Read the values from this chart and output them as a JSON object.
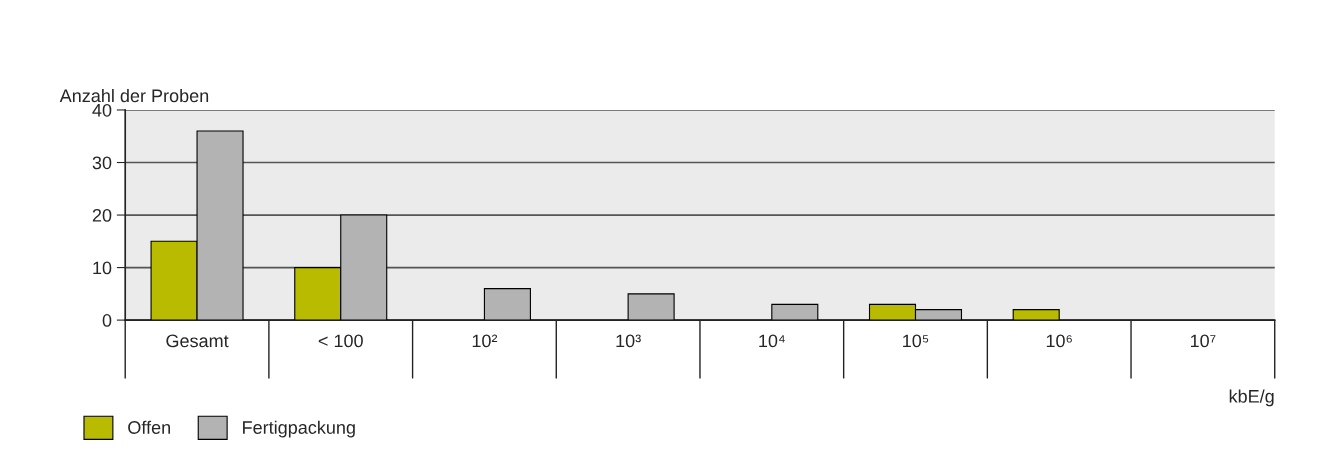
{
  "chart_data": {
    "type": "bar",
    "ylabel": "Anzahl der Proben",
    "xlabel": "kbE/g",
    "categories": [
      "Gesamt",
      "< 100",
      "10²",
      "10³",
      "10⁴",
      "10⁵",
      "10⁶",
      "10⁷"
    ],
    "series": [
      {
        "name": "Offen",
        "color": "#b9bb00",
        "values": [
          15,
          10,
          0,
          0,
          0,
          3,
          2,
          0
        ]
      },
      {
        "name": "Fertigpackung",
        "color": "#b3b3b3",
        "values": [
          36,
          20,
          6,
          5,
          3,
          2,
          0,
          0
        ]
      }
    ],
    "ylim": [
      0,
      40
    ],
    "yticks": [
      0,
      10,
      20,
      30,
      40
    ],
    "grid": "y",
    "legend": "bottom left"
  }
}
